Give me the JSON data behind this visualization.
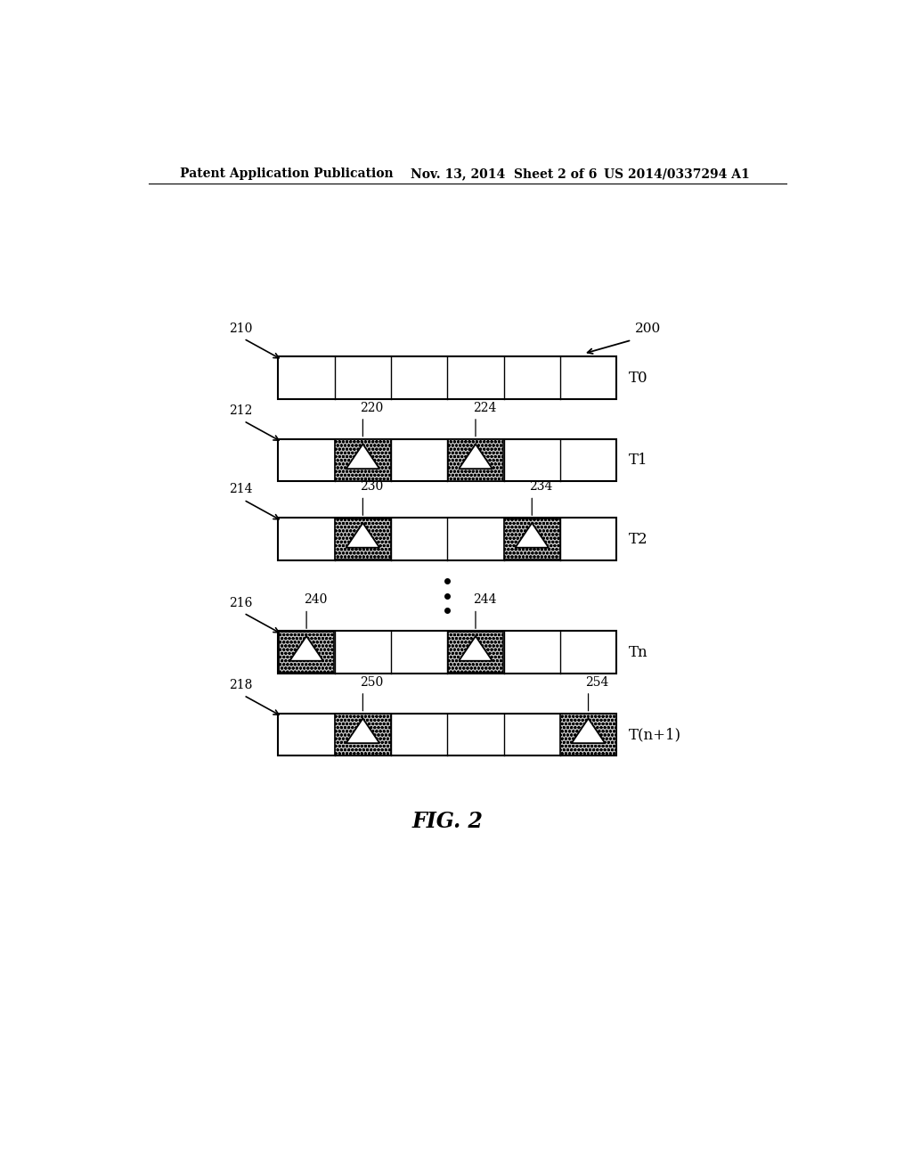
{
  "header_left": "Patent Application Publication",
  "header_mid": "Nov. 13, 2014  Sheet 2 of 6",
  "header_right": "US 2014/0337294 A1",
  "fig_label": "FIG. 2",
  "rows": [
    {
      "label_id": "210",
      "time_label": "T0",
      "num_cells": 6,
      "shaded_cells": [],
      "shaded_labels": []
    },
    {
      "label_id": "212",
      "time_label": "T1",
      "num_cells": 6,
      "shaded_cells": [
        1,
        3
      ],
      "shaded_labels": [
        "220",
        "224"
      ]
    },
    {
      "label_id": "214",
      "time_label": "T2",
      "num_cells": 6,
      "shaded_cells": [
        1,
        4
      ],
      "shaded_labels": [
        "230",
        "234"
      ]
    },
    {
      "label_id": "216",
      "time_label": "Tn",
      "num_cells": 6,
      "shaded_cells": [
        0,
        3
      ],
      "shaded_labels": [
        "240",
        "244"
      ]
    },
    {
      "label_id": "218",
      "time_label": "T(n+1)",
      "num_cells": 6,
      "shaded_cells": [
        1,
        5
      ],
      "shaded_labels": [
        "250",
        "254"
      ]
    }
  ],
  "big_arrow_label": "200",
  "bg_color": "#ffffff",
  "line_color": "#000000",
  "shaded_color": "#b8b8b8",
  "text_color": "#000000"
}
